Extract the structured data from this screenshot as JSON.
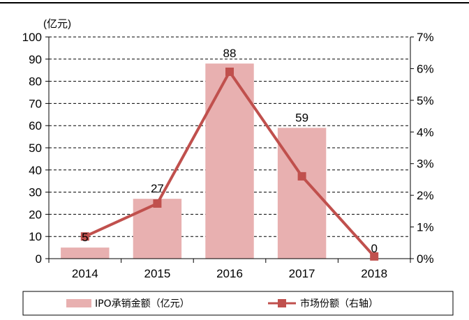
{
  "chart_data": {
    "type": "bar",
    "title": "",
    "y_unit_label": "(亿元)",
    "categories": [
      "2014",
      "2015",
      "2016",
      "2017",
      "2018"
    ],
    "series": [
      {
        "name": "IPO承销金额（亿元）",
        "kind": "bar",
        "axis": "left",
        "values": [
          5,
          27,
          88,
          59,
          0
        ],
        "data_labels": [
          "5",
          "27",
          "88",
          "59",
          "0"
        ]
      },
      {
        "name": "市场份额（右轴）",
        "kind": "line",
        "axis": "right",
        "values": [
          0.7,
          1.74,
          5.9,
          2.6,
          0.07
        ]
      }
    ],
    "y_left": {
      "min": 0,
      "max": 100,
      "step": 10,
      "ticks": [
        "0",
        "10",
        "20",
        "30",
        "40",
        "50",
        "60",
        "70",
        "80",
        "90",
        "100"
      ]
    },
    "y_right": {
      "min": 0,
      "max": 7,
      "step": 1,
      "ticks": [
        "0%",
        "1%",
        "2%",
        "3%",
        "4%",
        "5%",
        "6%",
        "7%"
      ]
    },
    "grid": "horizontal dashed",
    "legend_position": "bottom",
    "colors": {
      "bar": "#e8b0b0",
      "line": "#c0504d",
      "axis": "#000000"
    }
  }
}
